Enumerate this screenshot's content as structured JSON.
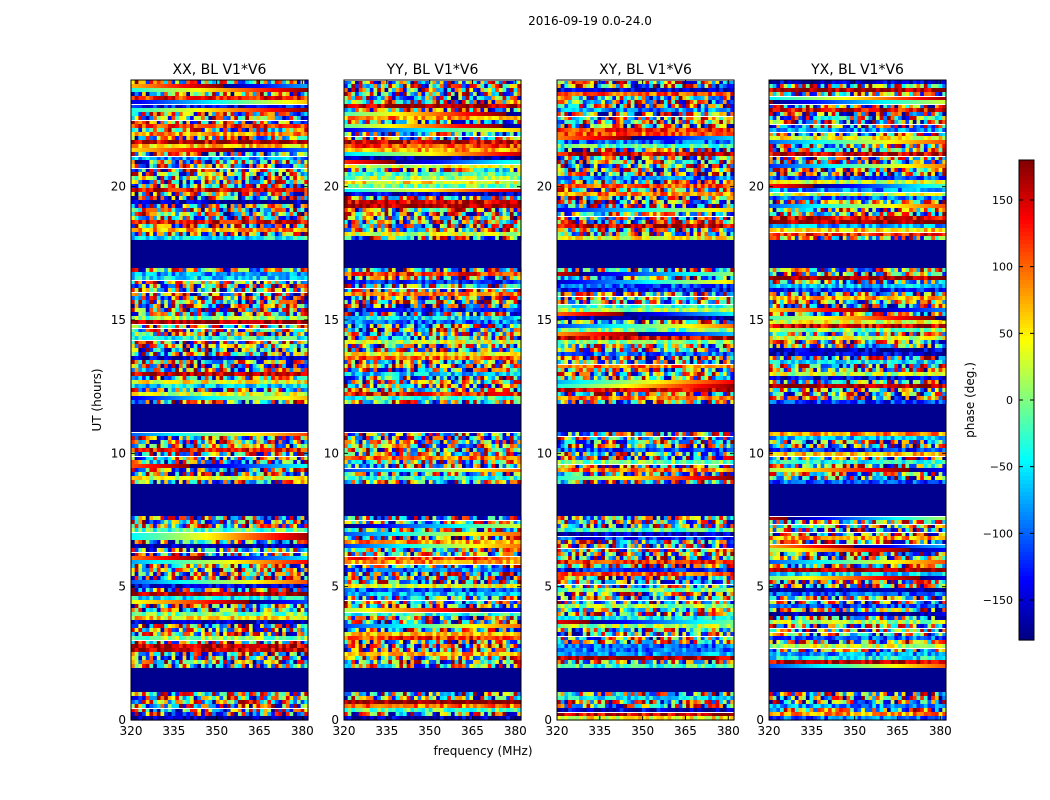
{
  "figure": {
    "suptitle": "2016-09-19 0.0-24.0"
  },
  "chart_data": {
    "type": "heatmap",
    "title": "2016-09-19 0.0-24.0",
    "xlabel": "frequency (MHz)",
    "ylabel": "UT (hours)",
    "xlim": [
      320,
      382
    ],
    "ylim": [
      0,
      24
    ],
    "x_ticks": [
      320,
      335,
      350,
      365,
      380
    ],
    "y_ticks": [
      0,
      5,
      10,
      15,
      20
    ],
    "panels": [
      {
        "name": "XX, BL V1*V6",
        "title": "XX, BL V1*V6",
        "show_ylabel": true
      },
      {
        "name": "YY, BL V1*V6",
        "title": "YY, BL V1*V6",
        "show_xlabel": true
      },
      {
        "name": "XY, BL V1*V6",
        "title": "XY, BL V1*V6"
      },
      {
        "name": "YX, BL V1*V6",
        "title": "YX, BL V1*V6"
      }
    ],
    "colorbar": {
      "label": "phase (deg.)",
      "range": [
        -180,
        180
      ],
      "ticks": [
        150,
        100,
        50,
        0,
        -50,
        -100,
        -150
      ],
      "tick_labels": [
        "150",
        "100",
        "50",
        "0",
        "−50",
        "−100",
        "−150"
      ],
      "colormap": "jet"
    },
    "masked_intervals_hours": [
      [
        1.1,
        2.0
      ],
      [
        7.6,
        8.8
      ],
      [
        10.8,
        11.8
      ],
      [
        17.0,
        18.0
      ]
    ],
    "colors": {
      "masked": "#00008f",
      "axis": "#000000"
    }
  }
}
